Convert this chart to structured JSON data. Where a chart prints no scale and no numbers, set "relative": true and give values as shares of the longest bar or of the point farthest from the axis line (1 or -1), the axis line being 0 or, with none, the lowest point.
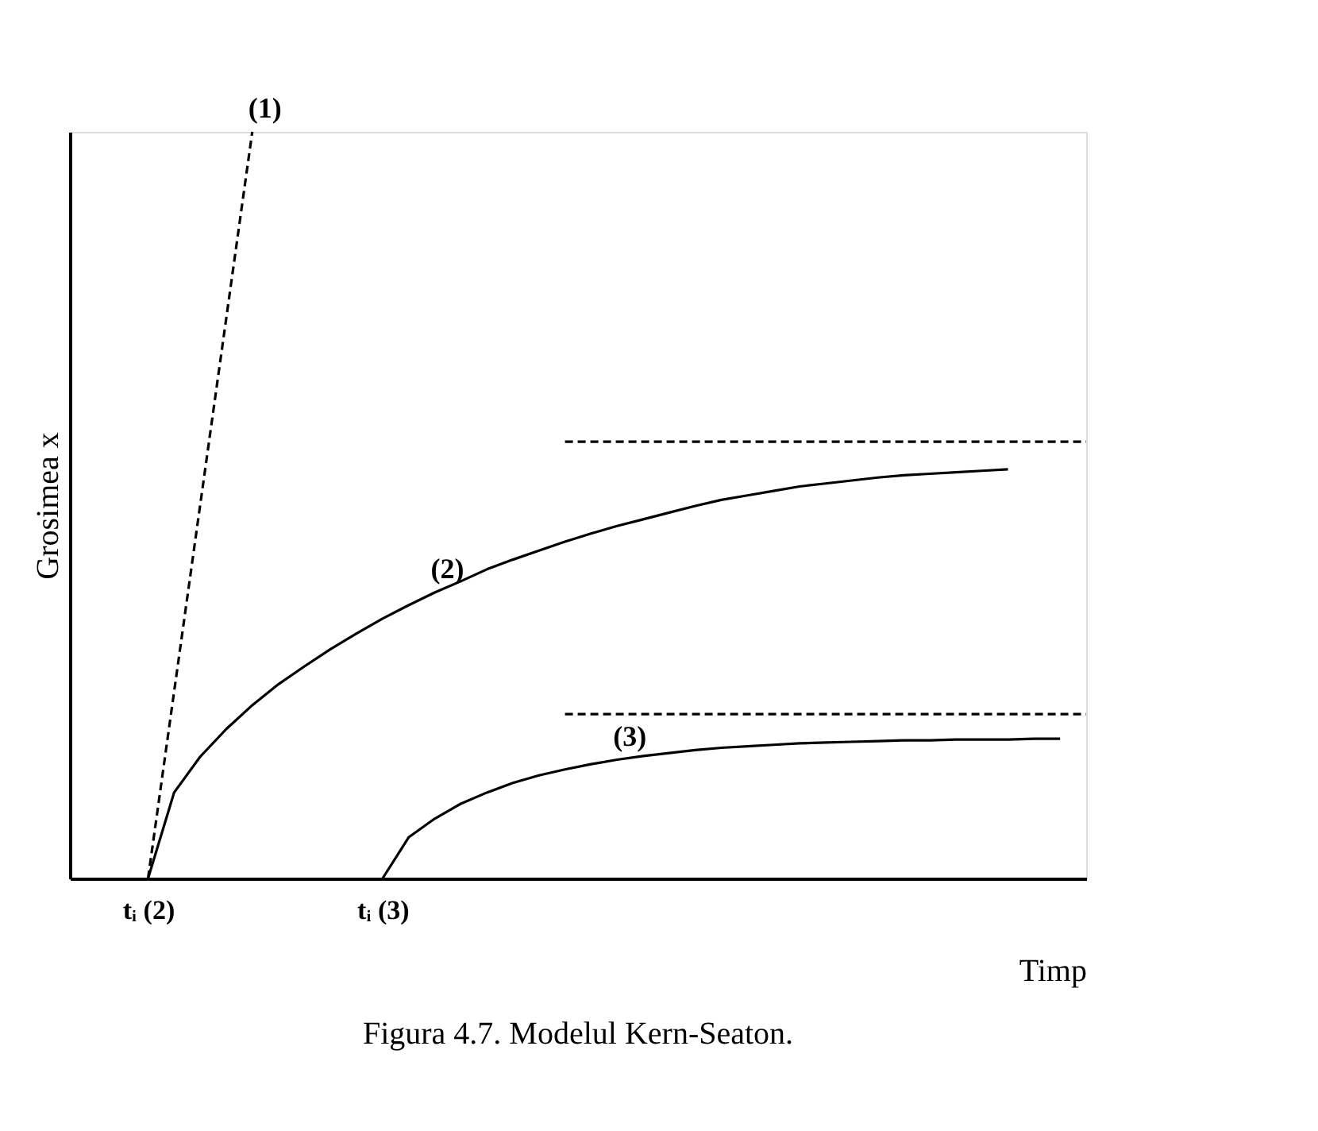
{
  "chart_data": {
    "type": "line",
    "relative": true,
    "xlabel": "Timp",
    "ylabel": "Grosimea  x",
    "title": "Figura 4.7. Modelul Kern-Seaton.",
    "grid": false,
    "categories": [
      null,
      null,
      null,
      "tᵢ (2)",
      null,
      null,
      null,
      null,
      null,
      null,
      null,
      null,
      "tᵢ (3)",
      null,
      null,
      null,
      null,
      null,
      null,
      null,
      null,
      null,
      null,
      null,
      null,
      null,
      null,
      null,
      null,
      null,
      null,
      null,
      null,
      null,
      null,
      null,
      null,
      null,
      null,
      null
    ],
    "series": [
      {
        "name": "(1)",
        "color": "#000000",
        "line_style": "dashed",
        "values": [
          null,
          null,
          null,
          0,
          0.25,
          0.5,
          0.75,
          1,
          null,
          null,
          null,
          null,
          null,
          null,
          null,
          null,
          null,
          null,
          null,
          null,
          null,
          null,
          null,
          null,
          null,
          null,
          null,
          null,
          null,
          null,
          null,
          null,
          null,
          null,
          null,
          null,
          null,
          null,
          null,
          null
        ]
      },
      {
        "name": "(2)",
        "color": "#000000",
        "line_style": "solid",
        "values": [
          null,
          null,
          null,
          0,
          0.115,
          0.163,
          0.2,
          0.232,
          0.26,
          0.284,
          0.307,
          0.328,
          0.348,
          0.366,
          0.383,
          0.398,
          0.414,
          0.427,
          0.439,
          0.451,
          0.462,
          0.472,
          0.481,
          0.49,
          0.499,
          0.507,
          0.513,
          0.519,
          0.525,
          0.529,
          0.533,
          0.537,
          0.54,
          0.542,
          0.544,
          0.546,
          0.548,
          null,
          null,
          null
        ]
      },
      {
        "name": "(3)",
        "color": "#000000",
        "line_style": "solid",
        "values": [
          null,
          null,
          null,
          null,
          null,
          null,
          null,
          null,
          null,
          null,
          null,
          null,
          0,
          0.055,
          0.08,
          0.1,
          0.115,
          0.128,
          0.138,
          0.146,
          0.153,
          0.159,
          0.164,
          0.168,
          0.172,
          0.175,
          0.177,
          0.179,
          0.181,
          0.182,
          0.183,
          0.184,
          0.185,
          0.185,
          0.186,
          0.186,
          0.186,
          0.187,
          0.187,
          null
        ]
      },
      {
        "color": "#000000",
        "line_style": "dashed",
        "values": [
          null,
          null,
          null,
          null,
          null,
          null,
          null,
          null,
          null,
          null,
          null,
          null,
          null,
          null,
          null,
          null,
          null,
          null,
          null,
          0.585,
          0.585,
          0.585,
          0.585,
          0.585,
          0.585,
          0.585,
          0.585,
          0.585,
          0.585,
          0.585,
          0.585,
          0.585,
          0.585,
          0.585,
          0.585,
          0.585,
          0.585,
          0.585,
          0.585,
          0.585
        ]
      },
      {
        "color": "#000000",
        "line_style": "dashed",
        "values": [
          null,
          null,
          null,
          null,
          null,
          null,
          null,
          null,
          null,
          null,
          null,
          null,
          null,
          null,
          null,
          null,
          null,
          null,
          null,
          0.22,
          0.22,
          0.22,
          0.22,
          0.22,
          0.22,
          0.22,
          0.22,
          0.22,
          0.22,
          0.22,
          0.22,
          0.22,
          0.22,
          0.22,
          0.22,
          0.22,
          0.22,
          0.22,
          0.22,
          0.22
        ]
      }
    ]
  }
}
